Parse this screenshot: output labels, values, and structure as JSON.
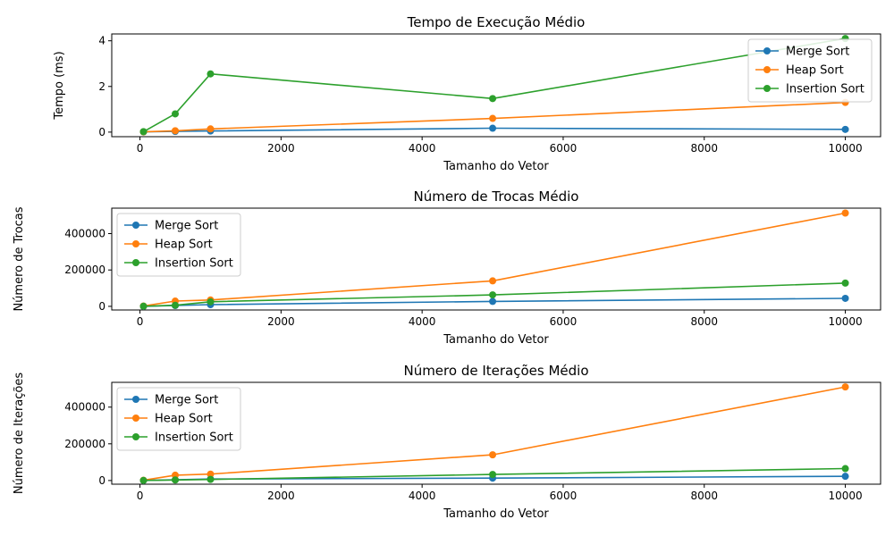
{
  "chart_data": [
    {
      "type": "line",
      "title": "Tempo de Execução Médio",
      "xlabel": "Tamanho do Vetor",
      "ylabel": "Tempo (ms)",
      "xlim": [
        -400,
        10500
      ],
      "ylim": [
        -0.2,
        4.3
      ],
      "xticks": [
        0,
        2000,
        4000,
        6000,
        8000,
        10000
      ],
      "yticks": [
        0,
        2,
        4
      ],
      "legend_loc": "upper right",
      "x": [
        50,
        500,
        1000,
        5000,
        10000
      ],
      "series": [
        {
          "name": "Merge Sort",
          "color": "#1f77b4",
          "values": [
            0.01,
            0.03,
            0.05,
            0.17,
            0.12
          ]
        },
        {
          "name": "Heap Sort",
          "color": "#ff7f0e",
          "values": [
            0.01,
            0.06,
            0.14,
            0.6,
            1.3
          ]
        },
        {
          "name": "Insertion Sort",
          "color": "#2ca02c",
          "values": [
            0.02,
            0.8,
            2.55,
            1.47,
            4.1
          ]
        }
      ]
    },
    {
      "type": "line",
      "title": "Número de Trocas Médio",
      "xlabel": "Tamanho do Vetor",
      "ylabel": "Número de Trocas",
      "xlim": [
        -400,
        10500
      ],
      "ylim": [
        -20000,
        540000
      ],
      "xticks": [
        0,
        2000,
        4000,
        6000,
        8000,
        10000
      ],
      "yticks": [
        0,
        200000,
        400000
      ],
      "legend_loc": "upper left",
      "x": [
        50,
        500,
        1000,
        5000,
        10000
      ],
      "series": [
        {
          "name": "Merge Sort",
          "color": "#1f77b4",
          "values": [
            300,
            4500,
            9500,
            27000,
            44000
          ]
        },
        {
          "name": "Heap Sort",
          "color": "#ff7f0e",
          "values": [
            1500,
            29000,
            35000,
            140000,
            513000
          ]
        },
        {
          "name": "Insertion Sort",
          "color": "#2ca02c",
          "values": [
            600,
            6000,
            25000,
            63000,
            128000
          ]
        }
      ]
    },
    {
      "type": "line",
      "title": "Número de Iterações Médio",
      "xlabel": "Tamanho do Vetor",
      "ylabel": "Número de Iterações",
      "xlim": [
        -400,
        10500
      ],
      "ylim": [
        -20000,
        535000
      ],
      "xticks": [
        0,
        2000,
        4000,
        6000,
        8000,
        10000
      ],
      "yticks": [
        0,
        200000,
        400000
      ],
      "legend_loc": "upper left",
      "x": [
        50,
        500,
        1000,
        5000,
        10000
      ],
      "series": [
        {
          "name": "Merge Sort",
          "color": "#1f77b4",
          "values": [
            300,
            4000,
            8000,
            13000,
            23000
          ]
        },
        {
          "name": "Heap Sort",
          "color": "#ff7f0e",
          "values": [
            1500,
            29000,
            35000,
            140000,
            510000
          ]
        },
        {
          "name": "Insertion Sort",
          "color": "#2ca02c",
          "values": [
            600,
            3000,
            6000,
            33000,
            65000
          ]
        }
      ]
    }
  ]
}
